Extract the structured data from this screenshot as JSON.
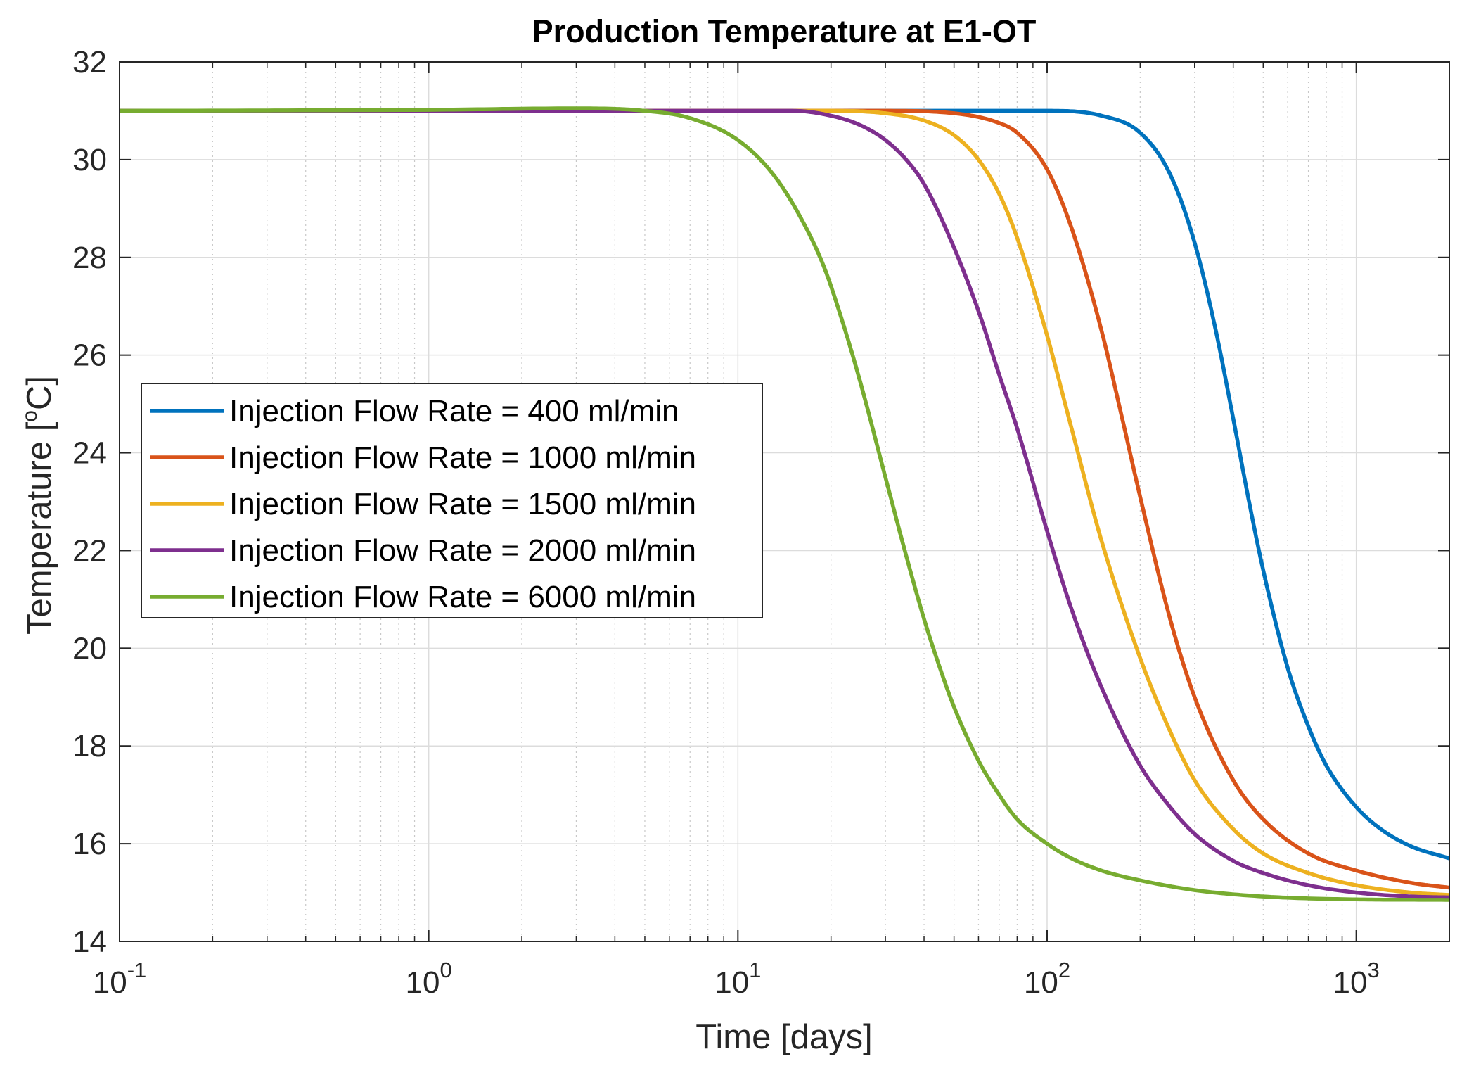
{
  "chart_data": {
    "type": "line",
    "title": "Production Temperature at E1-OT",
    "xlabel": "Time [days]",
    "ylabel_main": "Temperature [",
    "ylabel_super": "o",
    "ylabel_end": "C]",
    "xscale": "log",
    "xlim": [
      0.1,
      2000
    ],
    "ylim": [
      14,
      32
    ],
    "grid": true,
    "legend_position": "left, middle",
    "yticks": [
      14,
      16,
      18,
      20,
      22,
      24,
      26,
      28,
      30,
      32
    ],
    "yticklabels": [
      "14",
      "16",
      "18",
      "20",
      "22",
      "24",
      "26",
      "28",
      "30",
      "32"
    ],
    "xticks": [
      {
        "value": 0.1,
        "base": "10",
        "exp": "-1"
      },
      {
        "value": 1,
        "base": "10",
        "exp": "0"
      },
      {
        "value": 10,
        "base": "10",
        "exp": "1"
      },
      {
        "value": 100,
        "base": "10",
        "exp": "2"
      },
      {
        "value": 1000,
        "base": "10",
        "exp": "3"
      }
    ],
    "series": [
      {
        "name": "Injection Flow Rate = 400 ml/min",
        "color": "#0072BD",
        "x": [
          0.1,
          1,
          10,
          50,
          100,
          150,
          200,
          250,
          300,
          350,
          400,
          450,
          500,
          600,
          700,
          800,
          1000,
          1200,
          1500,
          2000
        ],
        "y": [
          31.0,
          31.0,
          31.0,
          31.0,
          31.0,
          30.9,
          30.55,
          29.7,
          28.3,
          26.55,
          24.7,
          23.0,
          21.6,
          19.6,
          18.4,
          17.6,
          16.75,
          16.3,
          15.95,
          15.7
        ]
      },
      {
        "name": "Injection Flow Rate = 1000 ml/min",
        "color": "#D95319",
        "x": [
          0.1,
          1,
          10,
          30,
          50,
          70,
          80,
          100,
          120,
          150,
          175,
          200,
          250,
          300,
          400,
          500,
          700,
          1000,
          1500,
          2000
        ],
        "y": [
          31.0,
          31.0,
          31.0,
          31.0,
          30.95,
          30.75,
          30.55,
          29.8,
          28.6,
          26.5,
          24.7,
          23.1,
          20.6,
          19.0,
          17.3,
          16.5,
          15.8,
          15.45,
          15.2,
          15.1
        ]
      },
      {
        "name": "Injection Flow Rate = 1500 ml/min",
        "color": "#EDB120",
        "x": [
          0.1,
          1,
          10,
          20,
          30,
          40,
          50,
          60,
          70,
          80,
          100,
          120,
          150,
          200,
          250,
          300,
          400,
          500,
          700,
          1000,
          1500,
          2000
        ],
        "y": [
          31.0,
          31.0,
          31.0,
          31.0,
          30.95,
          30.8,
          30.5,
          30.0,
          29.3,
          28.4,
          26.4,
          24.5,
          22.2,
          19.8,
          18.3,
          17.3,
          16.3,
          15.8,
          15.4,
          15.15,
          15.0,
          14.95
        ]
      },
      {
        "name": "Injection Flow Rate = 2000 ml/min",
        "color": "#7E2F8E",
        "x": [
          0.1,
          1,
          10,
          15,
          20,
          25,
          30,
          35,
          40,
          50,
          60,
          70,
          80,
          100,
          120,
          150,
          200,
          250,
          300,
          400,
          500,
          700,
          1000,
          1500,
          2000
        ],
        "y": [
          31.0,
          31.0,
          31.0,
          31.0,
          30.9,
          30.7,
          30.4,
          30.0,
          29.5,
          28.2,
          26.9,
          25.6,
          24.5,
          22.4,
          20.8,
          19.2,
          17.6,
          16.75,
          16.2,
          15.65,
          15.4,
          15.15,
          15.0,
          14.92,
          14.9
        ]
      },
      {
        "name": "Injection Flow Rate = 6000 ml/min",
        "color": "#77AC30",
        "x": [
          0.1,
          1,
          3,
          5,
          7,
          10,
          13,
          16,
          19,
          22,
          25,
          30,
          35,
          40,
          45,
          50,
          60,
          70,
          80,
          100,
          120,
          150,
          200,
          300,
          500,
          1000,
          2000
        ],
        "y": [
          31.0,
          31.02,
          31.05,
          31.0,
          30.85,
          30.4,
          29.7,
          28.8,
          27.8,
          26.6,
          25.4,
          23.5,
          21.9,
          20.6,
          19.6,
          18.8,
          17.7,
          17.0,
          16.5,
          16.0,
          15.7,
          15.45,
          15.25,
          15.05,
          14.92,
          14.86,
          14.85
        ]
      }
    ]
  }
}
